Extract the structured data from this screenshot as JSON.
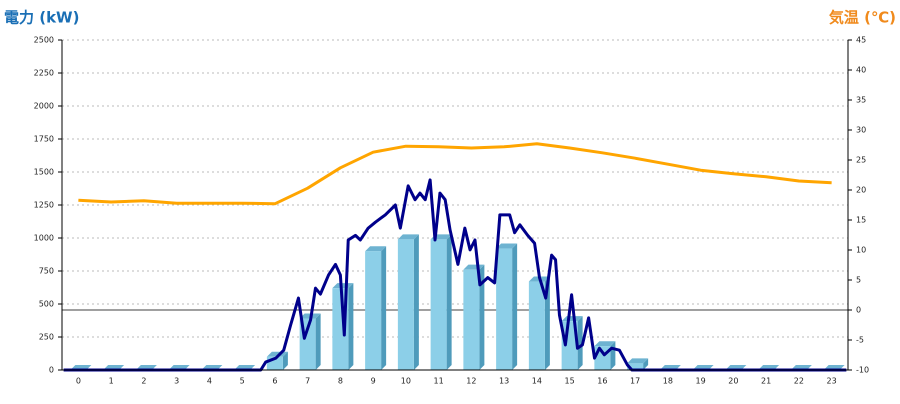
{
  "chart_data": {
    "type": "combo",
    "y_title": "電力 (kW)",
    "y2_title": "気温 (℃)",
    "categories": [
      "0",
      "1",
      "2",
      "3",
      "4",
      "5",
      "6",
      "7",
      "8",
      "9",
      "10",
      "11",
      "12",
      "13",
      "14",
      "15",
      "16",
      "17",
      "18",
      "19",
      "20",
      "21",
      "22",
      "23"
    ],
    "xlim": [
      -0.5,
      23.5
    ],
    "ylim": [
      0,
      2500
    ],
    "yticks": [
      0,
      250,
      500,
      750,
      1000,
      1250,
      1500,
      1750,
      2000,
      2250,
      2500
    ],
    "y2lim": [
      -10,
      45
    ],
    "y2ticks": [
      -10,
      -5,
      0,
      5,
      10,
      15,
      20,
      25,
      30,
      35,
      40,
      45
    ],
    "grid": true,
    "y2_zero_line": true,
    "series": [
      {
        "type": "bar",
        "color": "#8ccfe8",
        "values": [
          0,
          0,
          0,
          0,
          0,
          0,
          100,
          390,
          620,
          900,
          990,
          990,
          760,
          920,
          670,
          370,
          180,
          50,
          0,
          0,
          0,
          0,
          0,
          0
        ]
      },
      {
        "type": "line",
        "color": "#00008b",
        "x": [
          -0.45,
          5.57,
          5.72,
          6.03,
          6.27,
          6.48,
          6.72,
          6.9,
          7.09,
          7.24,
          7.39,
          7.64,
          7.85,
          8.0,
          8.12,
          8.24,
          8.46,
          8.61,
          8.85,
          9.07,
          9.37,
          9.68,
          9.83,
          10.07,
          10.28,
          10.43,
          10.59,
          10.74,
          10.89,
          11.04,
          11.2,
          11.35,
          11.59,
          11.8,
          11.96,
          12.11,
          12.26,
          12.5,
          12.71,
          12.87,
          13.17,
          13.32,
          13.48,
          13.72,
          13.93,
          14.08,
          14.27,
          14.45,
          14.57,
          14.69,
          14.87,
          15.06,
          15.24,
          15.39,
          15.58,
          15.76,
          15.91,
          16.06,
          16.28,
          16.52,
          16.76,
          16.9,
          23.45
        ],
        "values": [
          0,
          0,
          60,
          90,
          150,
          340,
          545,
          240,
          380,
          620,
          575,
          720,
          800,
          720,
          265,
          985,
          1020,
          985,
          1075,
          1120,
          1175,
          1250,
          1075,
          1395,
          1290,
          1340,
          1290,
          1440,
          985,
          1340,
          1290,
          1060,
          800,
          1075,
          910,
          985,
          645,
          700,
          660,
          1175,
          1175,
          1040,
          1100,
          1020,
          960,
          700,
          545,
          870,
          835,
          415,
          190,
          570,
          165,
          190,
          395,
          90,
          165,
          115,
          165,
          150,
          40,
          0,
          0
        ]
      },
      {
        "type": "line",
        "axis": "y2",
        "color": "#ffa500",
        "x": [
          0,
          1,
          2,
          3,
          4,
          5,
          6,
          7,
          8,
          9,
          10,
          11,
          12,
          13,
          14,
          15,
          16,
          17,
          18,
          19,
          20,
          21,
          22,
          23
        ],
        "values": [
          18.3,
          18,
          18.2,
          17.8,
          17.8,
          17.8,
          17.7,
          20.3,
          23.7,
          26.3,
          27.3,
          27.2,
          27,
          27.2,
          27.7,
          27,
          26.2,
          25.3,
          24.3,
          23.3,
          22.7,
          22.2,
          21.5,
          21.2
        ]
      }
    ]
  }
}
